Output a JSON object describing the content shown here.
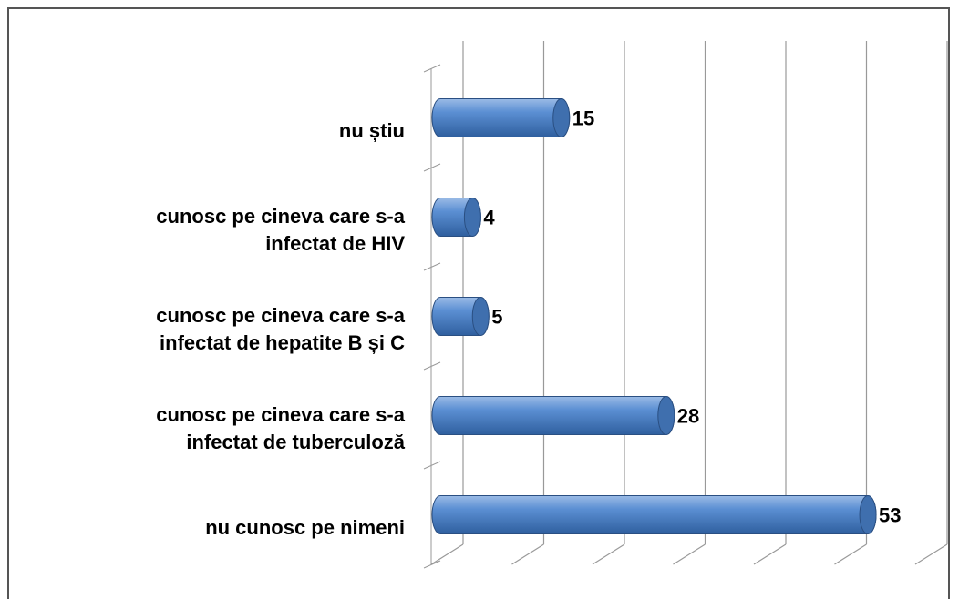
{
  "chart_data": {
    "type": "bar",
    "orientation": "horizontal",
    "categories": [
      "nu știu",
      "cunosc pe cineva care s-a\ninfectat  de HIV",
      "cunosc pe cineva care s-a\ninfectat  de hepatite B și C",
      "cunosc pe cineva care s-a\ninfectat de tuberculoză",
      "nu cunosc pe nimeni"
    ],
    "values": [
      15,
      4,
      5,
      28,
      53
    ],
    "color": "#4f81bd",
    "xlim": [
      0,
      60
    ],
    "xticks": [
      0,
      10,
      20,
      30,
      40,
      50,
      60
    ],
    "grid": true
  }
}
